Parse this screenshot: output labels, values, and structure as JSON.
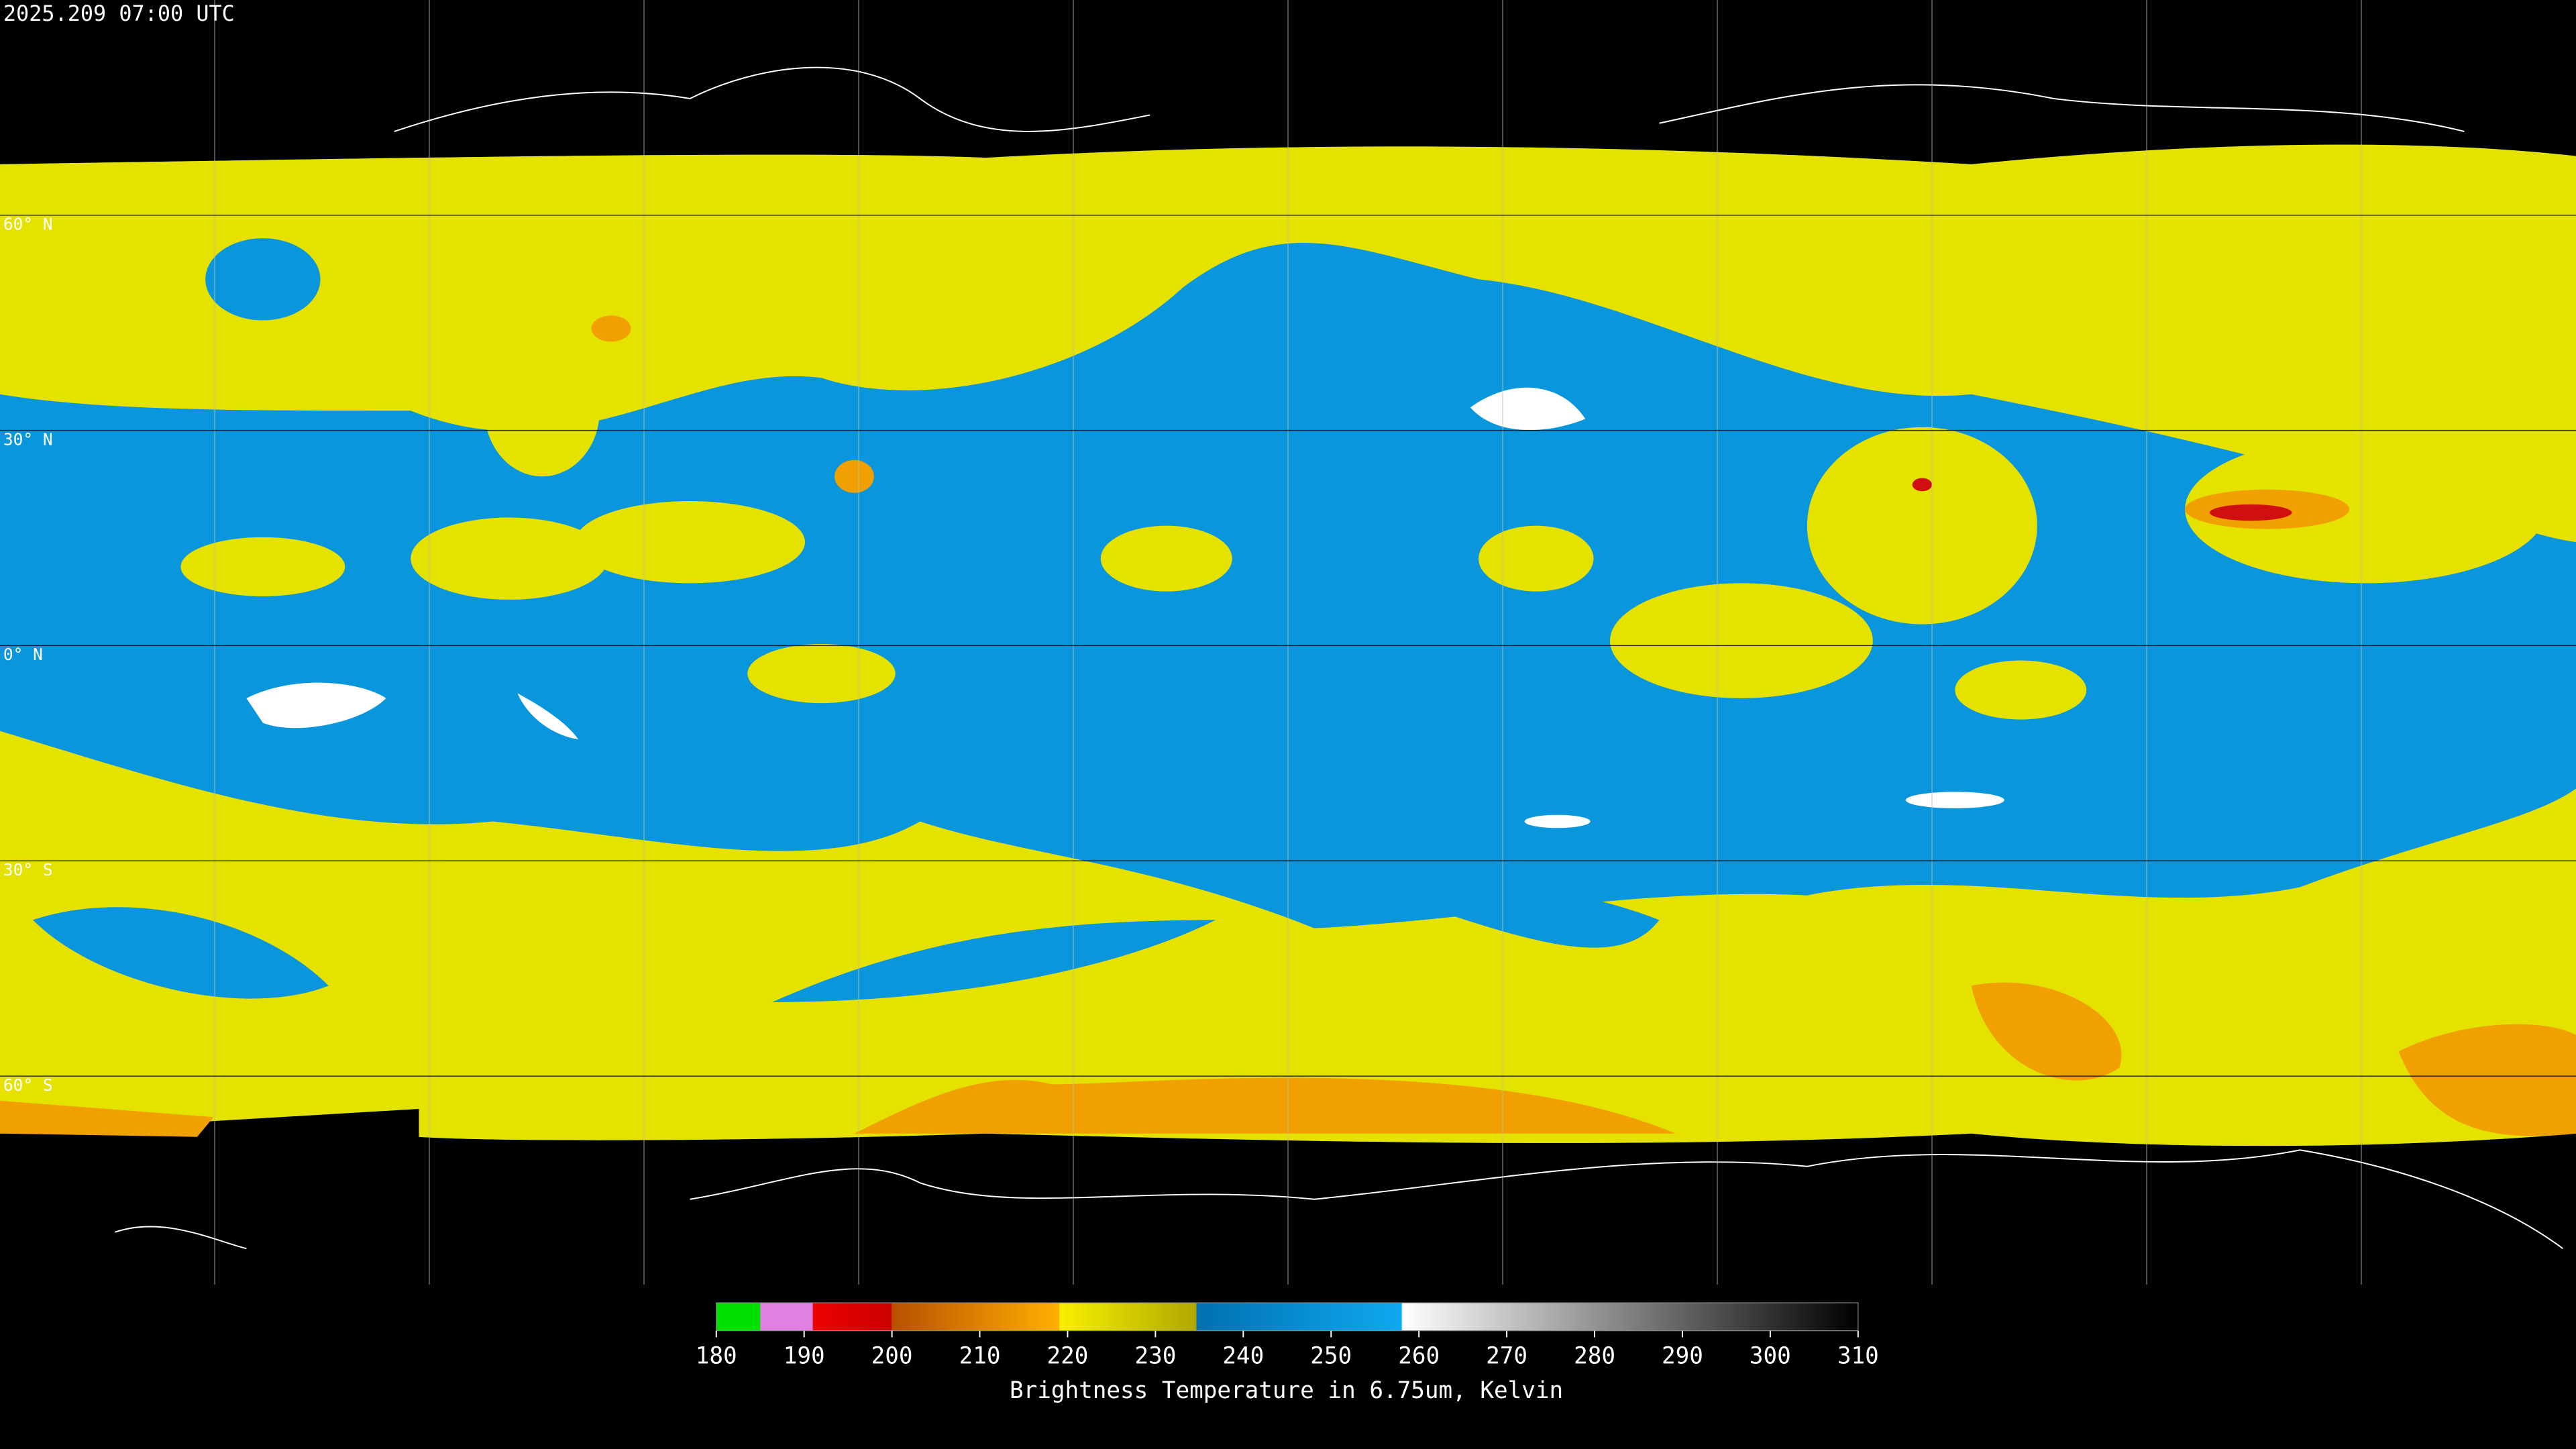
{
  "header": {
    "timestamp": "2025.209 07:00 UTC"
  },
  "map": {
    "latitude_labels": [
      "60° N",
      "30° N",
      "0° N",
      "30° S",
      "60° S"
    ]
  },
  "colorbar": {
    "ticks": [
      180,
      190,
      200,
      210,
      220,
      230,
      240,
      250,
      260,
      270,
      280,
      290,
      300,
      310
    ],
    "label": "Brightness Temperature in 6.75um, Kelvin"
  }
}
